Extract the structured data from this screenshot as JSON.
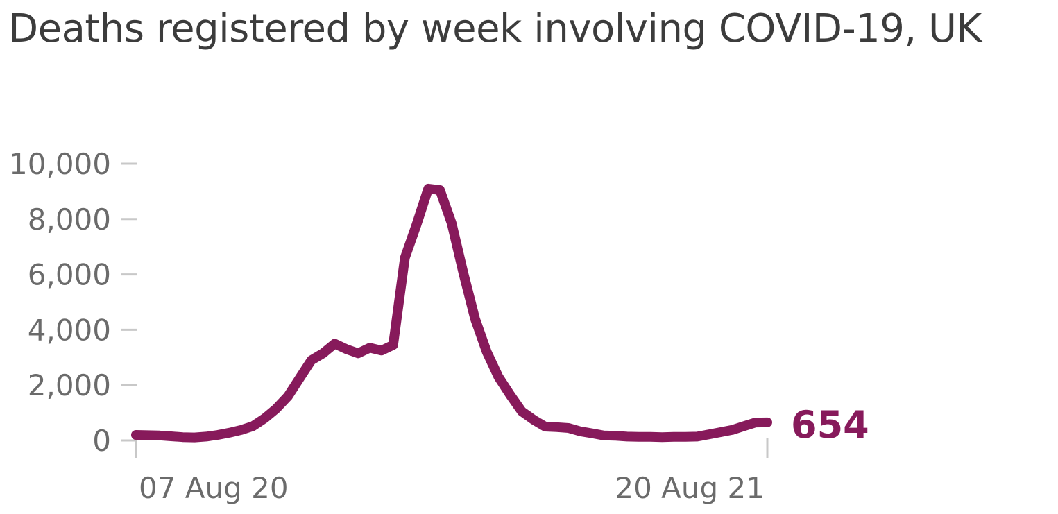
{
  "chart_data": {
    "type": "line",
    "title": "Deaths registered by week involving COVID-19, UK",
    "xlabel": "",
    "ylabel": "",
    "ylim": [
      0,
      10000
    ],
    "y_ticks": [
      {
        "value": 0,
        "label": "0"
      },
      {
        "value": 2000,
        "label": "2,000"
      },
      {
        "value": 4000,
        "label": "4,000"
      },
      {
        "value": 6000,
        "label": "6,000"
      },
      {
        "value": 8000,
        "label": "8,000"
      },
      {
        "value": 10000,
        "label": "10,000"
      }
    ],
    "x_ticks": [
      {
        "label": "07 Aug 20",
        "index": 0
      },
      {
        "label": "20 Aug 21",
        "index": 54
      }
    ],
    "grid": false,
    "legend": "none",
    "line_color": "#871a5b",
    "end_label": "654",
    "series": [
      {
        "values": [
          200,
          190,
          180,
          150,
          120,
          110,
          140,
          200,
          280,
          380,
          520,
          800,
          1150,
          1600,
          2250,
          2900,
          3150,
          3500,
          3300,
          3150,
          3350,
          3250,
          3450,
          6600,
          7800,
          9100,
          9050,
          7850,
          6050,
          4400,
          3200,
          2300,
          1650,
          1050,
          750,
          500,
          480,
          450,
          330,
          260,
          180,
          170,
          140,
          130,
          130,
          120,
          130,
          130,
          140,
          220,
          300,
          380,
          520,
          650,
          654
        ]
      }
    ]
  }
}
